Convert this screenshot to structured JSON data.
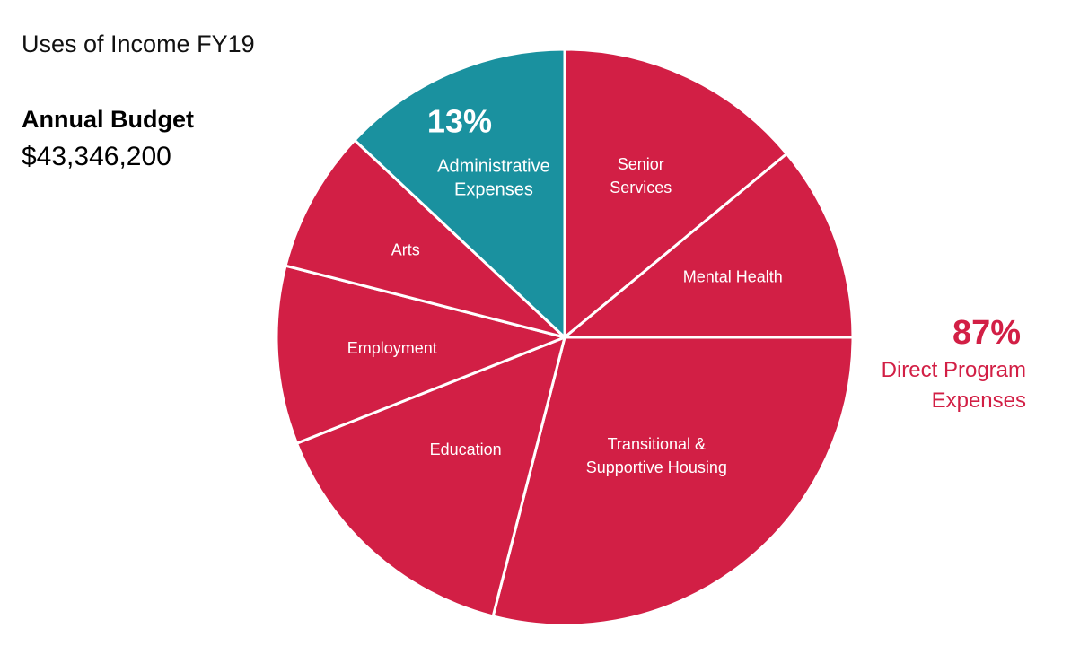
{
  "chart_data": {
    "type": "pie",
    "title": "Uses of Income FY19",
    "budget": {
      "label": "Annual Budget",
      "value": "$43,346,200"
    },
    "slices": [
      {
        "label": "Senior Services",
        "value": 14,
        "color": "#d21f45"
      },
      {
        "label": "Mental Health",
        "value": 11,
        "color": "#d21f45"
      },
      {
        "label": "Transitional & Supportive Housing",
        "value": 29,
        "color": "#d21f45"
      },
      {
        "label": "Education",
        "value": 15,
        "color": "#d21f45"
      },
      {
        "label": "Employment",
        "value": 10,
        "color": "#d21f45"
      },
      {
        "label": "Arts",
        "value": 8,
        "color": "#d21f45"
      },
      {
        "label": "Administrative Expenses",
        "value": 13,
        "color": "#1a919f",
        "pct_label": "13%"
      }
    ],
    "group_annotation": {
      "pct": "87%",
      "label": "Direct Program Expenses",
      "color": "#d21f45"
    },
    "legend": "none"
  }
}
